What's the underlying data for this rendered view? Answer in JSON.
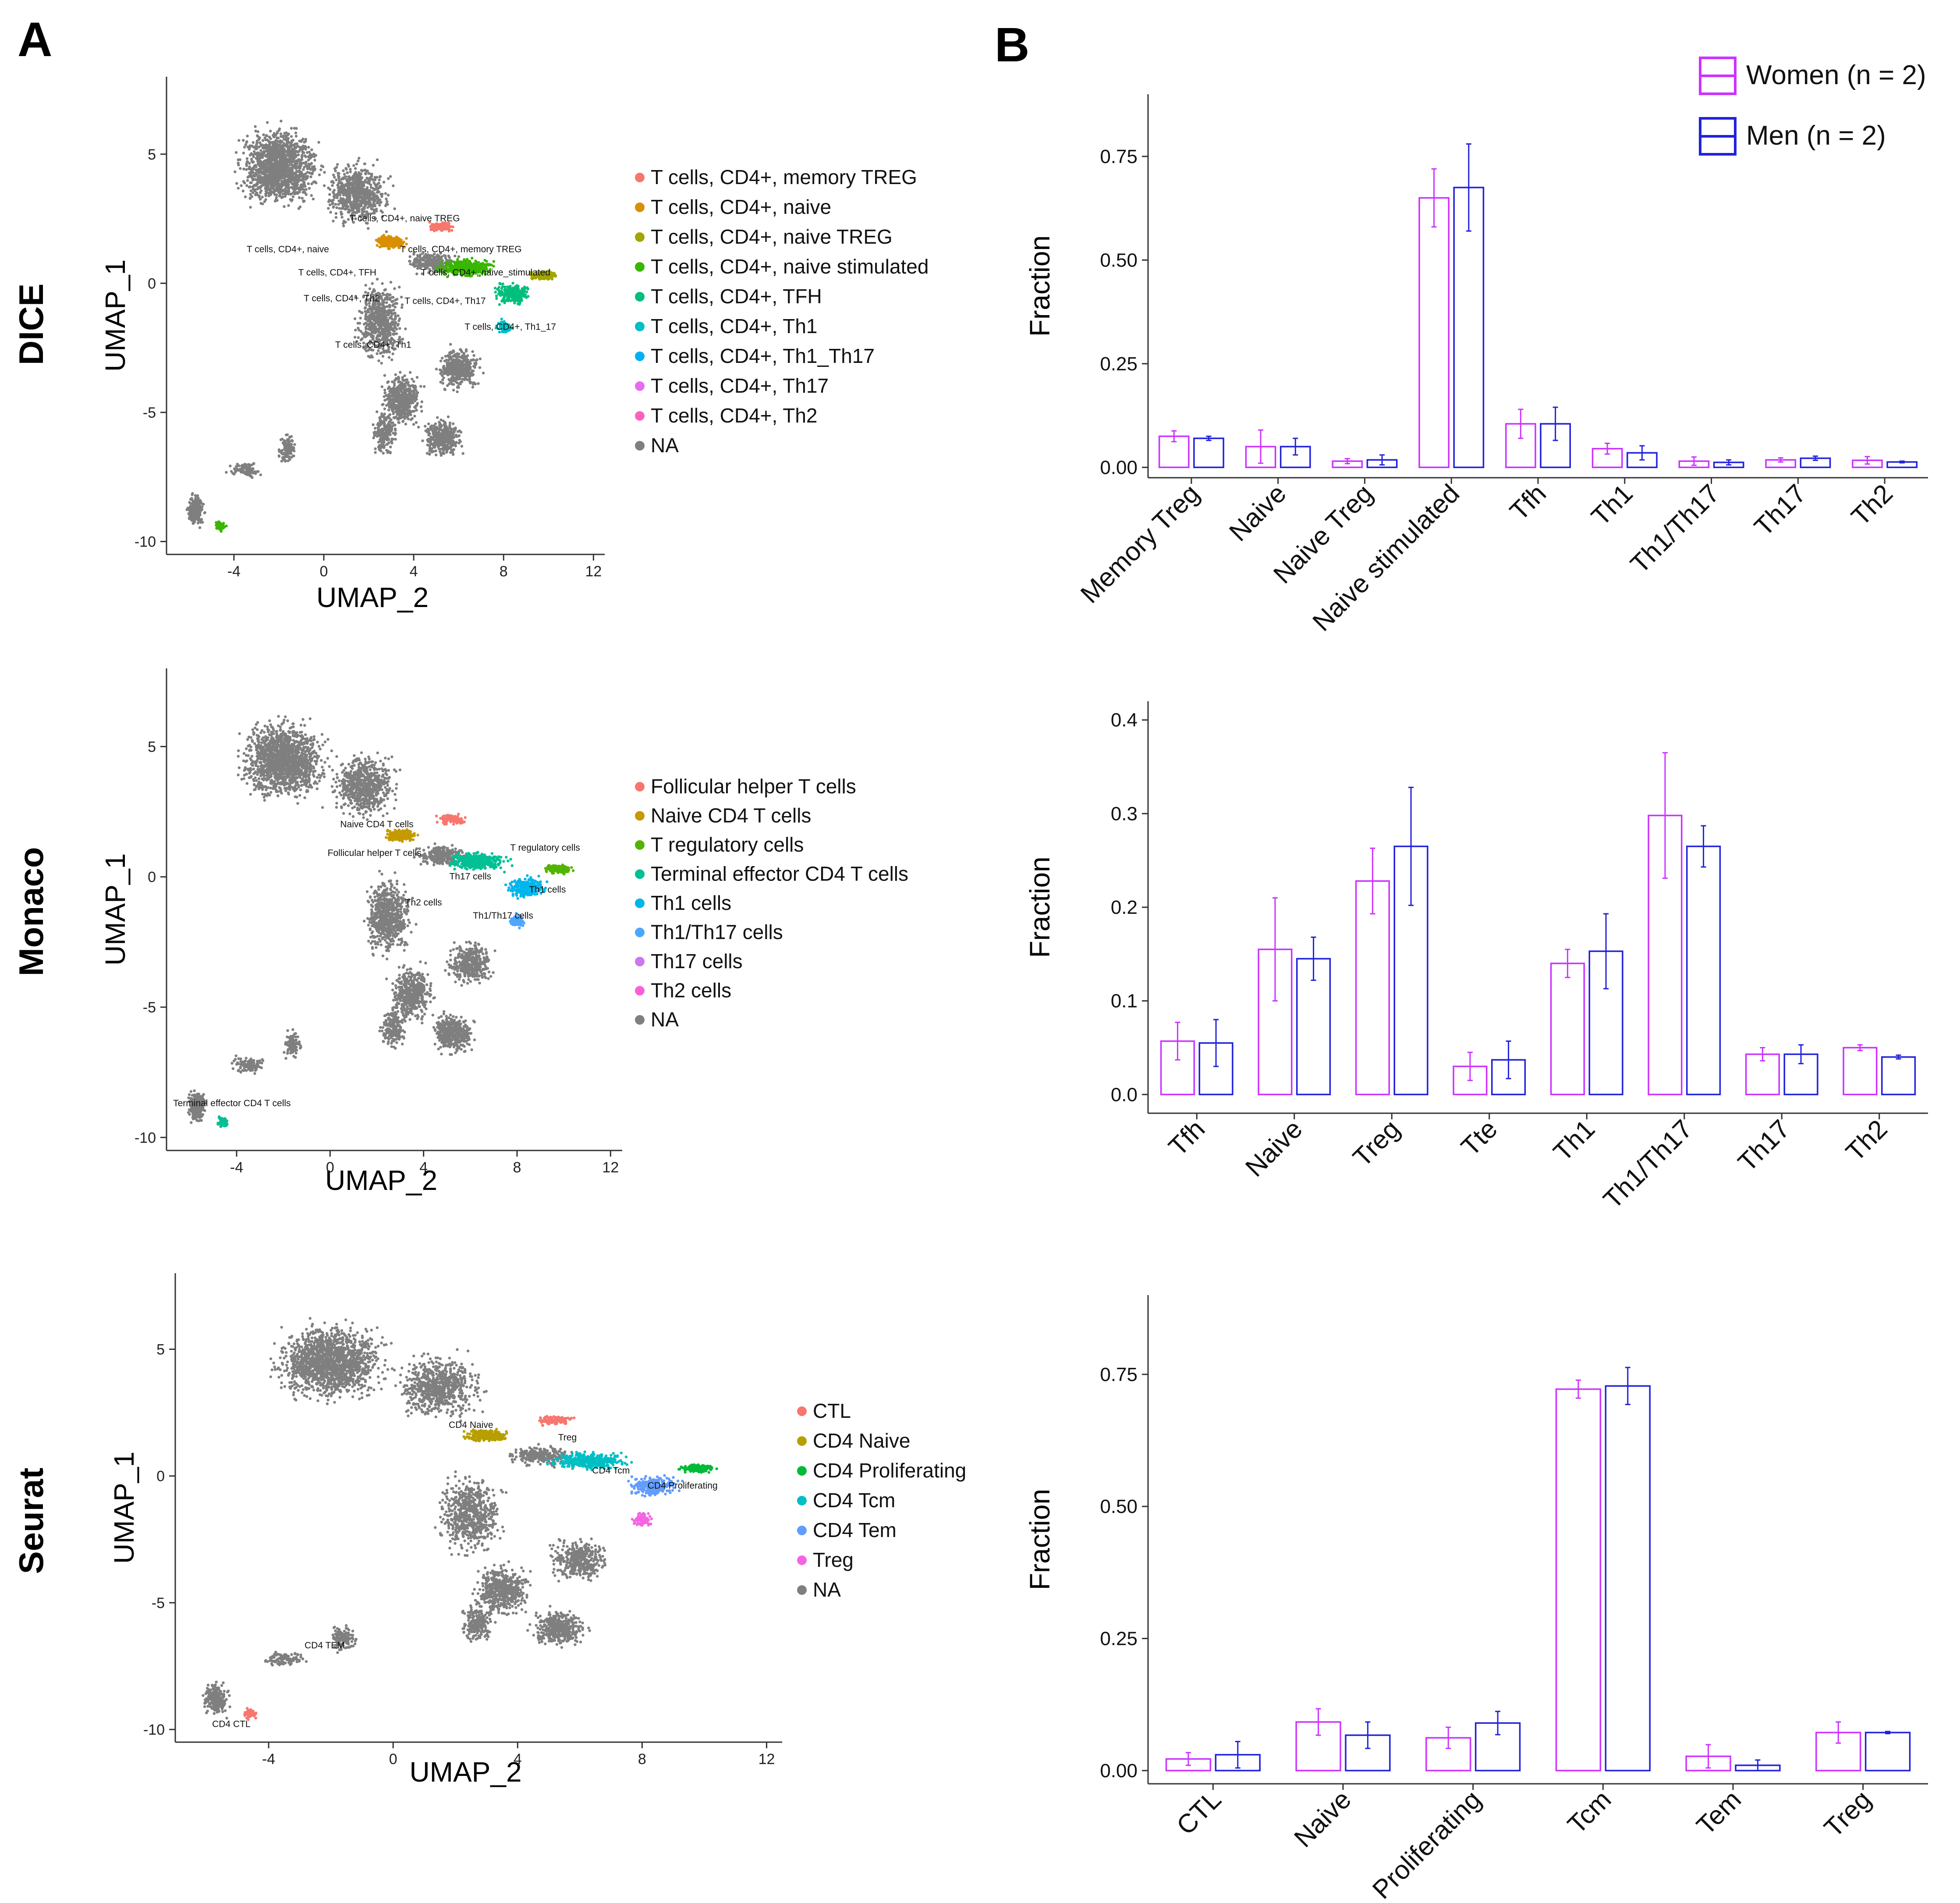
{
  "panels": {
    "a": "A",
    "b": "B"
  },
  "sex_legend": [
    {
      "label": "Women (n = 2)",
      "color": "#cc33ff"
    },
    {
      "label": "Men (n = 2)",
      "color": "#2222dd"
    }
  ],
  "chart_data": [
    {
      "type": "scatter",
      "name": "DICE UMAP",
      "row_label": "DICE",
      "xlabel": "UMAP_2",
      "ylabel": "UMAP_1",
      "xticks": [
        -4,
        0,
        4,
        8,
        12
      ],
      "yticks": [
        5,
        0,
        -5,
        -10
      ],
      "xlim": [
        -7,
        12.5
      ],
      "ylim": [
        -10.5,
        8
      ],
      "legend": [
        {
          "label": "T cells, CD4+, memory TREG",
          "color": "#f8766d"
        },
        {
          "label": "T cells, CD4+, naive",
          "color": "#d89000"
        },
        {
          "label": "T cells, CD4+, naive TREG",
          "color": "#a3a500"
        },
        {
          "label": "T cells, CD4+, naive stimulated",
          "color": "#39b600"
        },
        {
          "label": "T cells, CD4+, TFH",
          "color": "#00bf7d"
        },
        {
          "label": "T cells, CD4+, Th1",
          "color": "#00bfc4"
        },
        {
          "label": "T cells, CD4+, Th1_Th17",
          "color": "#00b0f6"
        },
        {
          "label": "T cells, CD4+, Th17",
          "color": "#e76bf3"
        },
        {
          "label": "T cells, CD4+, Th2",
          "color": "#ff62bc"
        },
        {
          "label": "NA",
          "color": "#7f7f7f"
        }
      ],
      "annotations": [
        {
          "text": "T cells, CD4+, naive TREG",
          "x": 3.6,
          "y": 2.4
        },
        {
          "text": "T cells, CD4+, naive",
          "x": -1.6,
          "y": 1.2
        },
        {
          "text": "T cells, CD4+, memory TREG",
          "x": 6.1,
          "y": 1.2
        },
        {
          "text": "T cells, CD4+, TFH",
          "x": 0.6,
          "y": 0.3
        },
        {
          "text": "T cells, CD4+, naive_stimulated",
          "x": 7.2,
          "y": 0.3
        },
        {
          "text": "T cells, CD4+, Th2",
          "x": 0.8,
          "y": -0.7
        },
        {
          "text": "T cells, CD4+, Th17",
          "x": 5.4,
          "y": -0.8
        },
        {
          "text": "T cells, CD4+, Th1_17",
          "x": 8.3,
          "y": -1.8
        },
        {
          "text": "T cells, CD4+, Th1",
          "x": 2.2,
          "y": -2.5
        }
      ]
    },
    {
      "type": "bar",
      "name": "DICE fractions",
      "ylabel": "Fraction",
      "categories": [
        "Memory Treg",
        "Naive",
        "Naive Treg",
        "Naive stimulated",
        "Tfh",
        "Th1",
        "Th1/Th17",
        "Th17",
        "Th2"
      ],
      "series": [
        {
          "name": "Women (n = 2)",
          "color": "#cc33ff",
          "values": [
            0.075,
            0.05,
            0.015,
            0.65,
            0.105,
            0.045,
            0.015,
            0.018,
            0.017
          ],
          "errors": [
            0.013,
            0.04,
            0.006,
            0.07,
            0.035,
            0.013,
            0.01,
            0.005,
            0.009
          ]
        },
        {
          "name": "Men (n = 2)",
          "color": "#2222dd",
          "values": [
            0.07,
            0.05,
            0.018,
            0.675,
            0.105,
            0.035,
            0.012,
            0.022,
            0.013
          ],
          "errors": [
            0.005,
            0.02,
            0.012,
            0.105,
            0.04,
            0.017,
            0.006,
            0.005,
            0.002
          ]
        }
      ],
      "ylim": [
        -0.025,
        0.9
      ],
      "yticks": [
        0.0,
        0.25,
        0.5,
        0.75
      ],
      "ytick_labels": [
        "0.00",
        "0.25",
        "0.50",
        "0.75"
      ]
    },
    {
      "type": "scatter",
      "name": "Monaco UMAP",
      "row_label": "Monaco",
      "xlabel": "UMAP_2",
      "ylabel": "UMAP_1",
      "xticks": [
        -4,
        0,
        4,
        8,
        12
      ],
      "yticks": [
        5,
        0,
        -5,
        -10
      ],
      "xlim": [
        -7,
        12.5
      ],
      "ylim": [
        -10.5,
        8
      ],
      "legend": [
        {
          "label": "Follicular helper T cells",
          "color": "#f8766d"
        },
        {
          "label": "Naive CD4 T cells",
          "color": "#c49a00"
        },
        {
          "label": "T regulatory cells",
          "color": "#53b400"
        },
        {
          "label": "Terminal effector CD4 T cells",
          "color": "#00c094"
        },
        {
          "label": "Th1 cells",
          "color": "#00b6eb"
        },
        {
          "label": "Th1/Th17 cells",
          "color": "#4da6ff"
        },
        {
          "label": "Th17 cells",
          "color": "#cc77ee"
        },
        {
          "label": "Th2 cells",
          "color": "#fb61d7"
        },
        {
          "label": "NA",
          "color": "#7f7f7f"
        }
      ],
      "annotations": [
        {
          "text": "Naive CD4 T cells",
          "x": 2.0,
          "y": 1.9
        },
        {
          "text": "T regulatory cells",
          "x": 9.2,
          "y": 1.0
        },
        {
          "text": "Follicular helper T cells",
          "x": 1.9,
          "y": 0.8
        },
        {
          "text": "Th17 cells",
          "x": 6.0,
          "y": -0.1
        },
        {
          "text": "Th1 cells",
          "x": 9.3,
          "y": -0.6
        },
        {
          "text": "Th2 cells",
          "x": 4.0,
          "y": -1.1
        },
        {
          "text": "Th1/Th17 cells",
          "x": 7.4,
          "y": -1.6
        },
        {
          "text": "Terminal effector CD4 T cells",
          "x": -4.2,
          "y": -8.8
        }
      ]
    },
    {
      "type": "bar",
      "name": "Monaco fractions",
      "ylabel": "Fraction",
      "categories": [
        "Tfh",
        "Naive",
        "Treg",
        "Tte",
        "Th1",
        "Th1/Th17",
        "Th17",
        "Th2"
      ],
      "series": [
        {
          "name": "Women (n = 2)",
          "color": "#cc33ff",
          "values": [
            0.057,
            0.155,
            0.228,
            0.03,
            0.14,
            0.298,
            0.043,
            0.05
          ],
          "errors": [
            0.02,
            0.055,
            0.035,
            0.015,
            0.015,
            0.067,
            0.007,
            0.003
          ]
        },
        {
          "name": "Men (n = 2)",
          "color": "#2222dd",
          "values": [
            0.055,
            0.145,
            0.265,
            0.037,
            0.153,
            0.265,
            0.043,
            0.04
          ],
          "errors": [
            0.025,
            0.023,
            0.063,
            0.02,
            0.04,
            0.022,
            0.01,
            0.002
          ]
        }
      ],
      "ylim": [
        -0.02,
        0.42
      ],
      "yticks": [
        0.0,
        0.1,
        0.2,
        0.3,
        0.4
      ],
      "ytick_labels": [
        "0.0",
        "0.1",
        "0.2",
        "0.3",
        "0.4"
      ]
    },
    {
      "type": "scatter",
      "name": "Seurat UMAP",
      "row_label": "Seurat",
      "xlabel": "UMAP_2",
      "ylabel": "UMAP_1",
      "xticks": [
        -4,
        0,
        4,
        8,
        12
      ],
      "yticks": [
        5,
        0,
        -5,
        -10
      ],
      "xlim": [
        -7,
        12.5
      ],
      "ylim": [
        -10.5,
        8
      ],
      "legend": [
        {
          "label": "CTL",
          "color": "#f8766d"
        },
        {
          "label": "CD4 Naive",
          "color": "#b79f00"
        },
        {
          "label": "CD4 Proliferating",
          "color": "#00ba38"
        },
        {
          "label": "CD4 Tcm",
          "color": "#00bfc4"
        },
        {
          "label": "CD4 Tem",
          "color": "#619cff"
        },
        {
          "label": "Treg",
          "color": "#f564e3"
        },
        {
          "label": "NA",
          "color": "#7f7f7f"
        }
      ],
      "annotations": [
        {
          "text": "CD4 Naive",
          "x": 2.5,
          "y": 1.9
        },
        {
          "text": "Treg",
          "x": 5.6,
          "y": 1.4
        },
        {
          "text": "CD4 Tcm",
          "x": 7.0,
          "y": 0.1
        },
        {
          "text": "CD4 Proliferating",
          "x": 9.3,
          "y": -0.5
        },
        {
          "text": "CD4 TEM",
          "x": -2.2,
          "y": -6.8
        },
        {
          "text": "CD4 CTL",
          "x": -5.2,
          "y": -9.9
        }
      ]
    },
    {
      "type": "bar",
      "name": "Seurat fractions",
      "ylabel": "Fraction",
      "categories": [
        "CTL",
        "Naive",
        "Proliferating",
        "Tcm",
        "Tem",
        "Treg"
      ],
      "series": [
        {
          "name": "Women (n = 2)",
          "color": "#cc33ff",
          "values": [
            0.022,
            0.092,
            0.062,
            0.722,
            0.027,
            0.072
          ],
          "errors": [
            0.012,
            0.025,
            0.02,
            0.017,
            0.022,
            0.02
          ]
        },
        {
          "name": "Men (n = 2)",
          "color": "#2222dd",
          "values": [
            0.03,
            0.067,
            0.09,
            0.728,
            0.01,
            0.072
          ],
          "errors": [
            0.025,
            0.025,
            0.022,
            0.035,
            0.01,
            0.002
          ]
        }
      ],
      "ylim": [
        -0.025,
        0.9
      ],
      "yticks": [
        0.0,
        0.25,
        0.5,
        0.75
      ],
      "ytick_labels": [
        "0.00",
        "0.25",
        "0.50",
        "0.75"
      ]
    }
  ]
}
